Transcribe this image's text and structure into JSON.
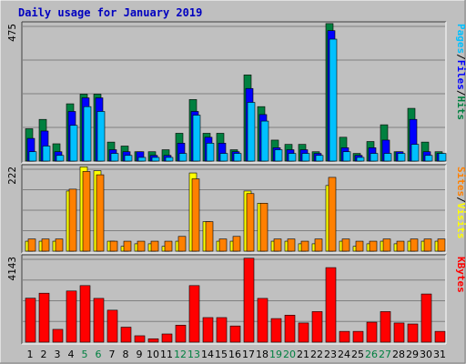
{
  "chart_data": {
    "type": "bar",
    "title": "Daily usage for January 2019",
    "categories": [
      "1",
      "2",
      "3",
      "4",
      "5",
      "6",
      "7",
      "8",
      "9",
      "10",
      "11",
      "12",
      "13",
      "14",
      "15",
      "16",
      "17",
      "18",
      "19",
      "20",
      "21",
      "22",
      "23",
      "24",
      "25",
      "26",
      "27",
      "28",
      "29",
      "30",
      "31"
    ],
    "weekend_days": [
      "5",
      "6",
      "12",
      "13",
      "19",
      "20",
      "26",
      "27"
    ],
    "colors": {
      "hits": "#008040",
      "files": "#0000ff",
      "pages": "#00c0ff",
      "visits": "#ffff00",
      "sites": "#ff8000",
      "kbytes": "#ff0000",
      "weekday_label": "#000000",
      "weekend_label": "#008040",
      "title": "#0000c0"
    },
    "panels": [
      {
        "id": "traffic",
        "ymax_label": "475",
        "ylim": [
          0,
          475
        ],
        "legend": [
          "Pages",
          "/",
          "Files",
          "/",
          "Hits"
        ],
        "series": [
          {
            "name": "Hits",
            "key": "hits",
            "values": [
              114,
              147,
              61,
              202,
              236,
              236,
              67,
              53,
              33,
              33,
              40,
              98,
              217,
              98,
              98,
              40,
              304,
              192,
              74,
              59,
              59,
              33,
              485,
              84,
              27,
              69,
              128,
              33,
              186,
              67,
              33
            ]
          },
          {
            "name": "Files",
            "key": "files",
            "values": [
              80,
              106,
              33,
              175,
              223,
              223,
              40,
              33,
              33,
              20,
              20,
              63,
              175,
              84,
              63,
              33,
              256,
              164,
              47,
              40,
              40,
              27,
              460,
              47,
              20,
              47,
              74,
              33,
              147,
              33,
              27
            ]
          },
          {
            "name": "Pages",
            "key": "pages",
            "values": [
              33,
              53,
              20,
              126,
              192,
              175,
              27,
              20,
              13,
              13,
              13,
              27,
              162,
              63,
              27,
              27,
              207,
              141,
              40,
              27,
              27,
              20,
              430,
              33,
              13,
              27,
              27,
              27,
              59,
              20,
              27
            ]
          }
        ]
      },
      {
        "id": "visitors",
        "ymax_label": "222",
        "ylim": [
          0,
          222
        ],
        "legend": [
          "Sites",
          "/",
          "Visits"
        ],
        "series": [
          {
            "name": "Visits",
            "key": "visits",
            "values": [
              27,
              27,
              27,
              163,
              230,
              218,
              27,
              13,
              20,
              20,
              13,
              27,
              212,
              80,
              27,
              27,
              163,
              130,
              27,
              27,
              20,
              20,
              178,
              27,
              13,
              20,
              27,
              20,
              27,
              27,
              27
            ]
          },
          {
            "name": "Sites",
            "key": "sites",
            "values": [
              33,
              33,
              33,
              168,
              216,
              207,
              27,
              27,
              27,
              27,
              27,
              40,
              196,
              80,
              33,
              40,
              156,
              130,
              33,
              33,
              27,
              33,
              200,
              33,
              27,
              27,
              33,
              27,
              33,
              33,
              33
            ]
          }
        ]
      },
      {
        "id": "kbytes",
        "ymax_label": "4143",
        "ylim": [
          0,
          4143
        ],
        "legend": [
          "KBytes"
        ],
        "series": [
          {
            "name": "KBytes",
            "key": "kbytes",
            "values": [
              2200,
              2450,
              640,
              2560,
              2830,
              2190,
              1600,
              750,
              320,
              170,
              410,
              850,
              2830,
              1230,
              1230,
              810,
              4200,
              2190,
              1180,
              1350,
              960,
              1530,
              3730,
              540,
              540,
              1000,
              1530,
              960,
              910,
              2410,
              540
            ]
          }
        ]
      }
    ]
  }
}
